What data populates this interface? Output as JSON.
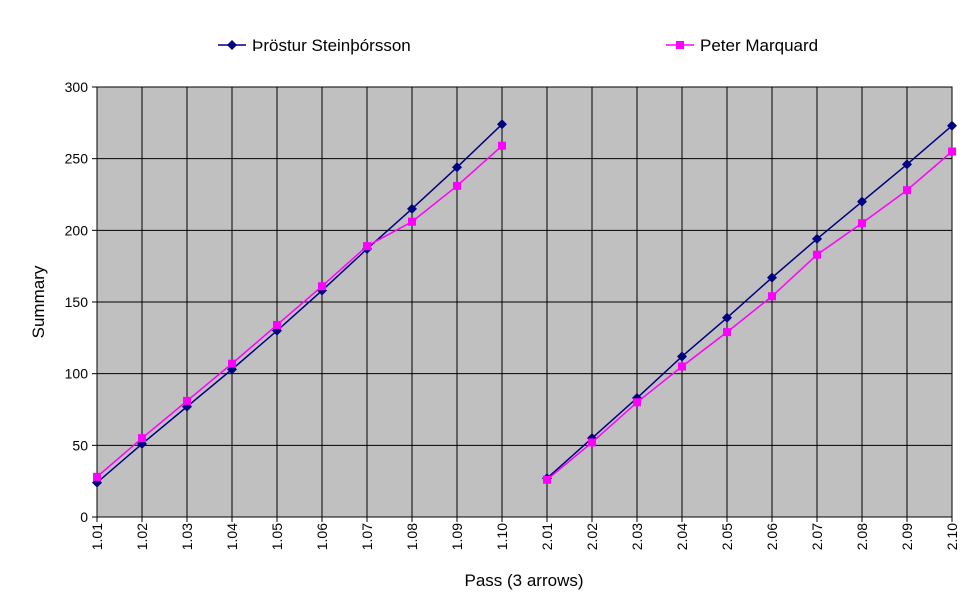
{
  "chart_data": {
    "type": "line",
    "title": "",
    "xlabel": "Pass (3 arrows)",
    "ylabel": "Summary",
    "ylim": [
      0,
      300
    ],
    "yticks": [
      0,
      50,
      100,
      150,
      200,
      250,
      300
    ],
    "grid": true,
    "legend_position": "top",
    "plot_background": "#c0c0c0",
    "categories": [
      "1.01",
      "1.02",
      "1.03",
      "1.04",
      "1.05",
      "1.06",
      "1.07",
      "1.08",
      "1.09",
      "1.10",
      "2.01",
      "2.02",
      "2.03",
      "2.04",
      "2.05",
      "2.06",
      "2.07",
      "2.08",
      "2.09",
      "2.10"
    ],
    "segments": [
      [
        0,
        9
      ],
      [
        10,
        19
      ]
    ],
    "series": [
      {
        "name": "Þröstur Steinþórsson",
        "color": "#000080",
        "marker": "diamond",
        "values": [
          24,
          51,
          77,
          103,
          130,
          158,
          187,
          215,
          244,
          274,
          27,
          55,
          83,
          112,
          139,
          167,
          194,
          220,
          246,
          273
        ]
      },
      {
        "name": "Peter Marquard",
        "color": "#ff00ff",
        "marker": "square",
        "values": [
          28,
          55,
          81,
          107,
          134,
          161,
          189,
          206,
          231,
          259,
          26,
          52,
          80,
          105,
          129,
          154,
          183,
          205,
          228,
          255
        ]
      }
    ]
  }
}
